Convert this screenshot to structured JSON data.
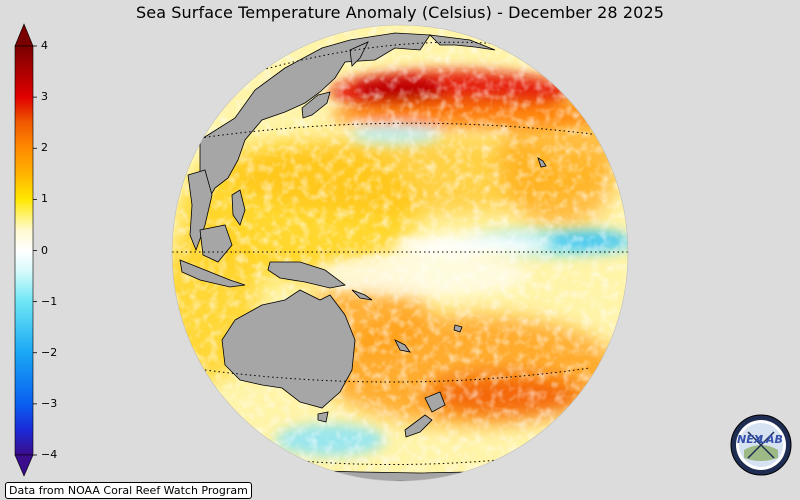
{
  "title": "Sea Surface Temperature Anomaly (Celsius) - December 28 2025",
  "source": "Data from NOAA Coral Reef Watch Program",
  "logo": {
    "name": "nexlab-logo",
    "text_left": "NEX",
    "text_right": "LAB"
  },
  "colorbar": {
    "min": -4,
    "max": 4,
    "ticks": [
      {
        "value": 4,
        "label": "4"
      },
      {
        "value": 3,
        "label": "3"
      },
      {
        "value": 2,
        "label": "2"
      },
      {
        "value": 1,
        "label": "1"
      },
      {
        "value": 0,
        "label": "0"
      },
      {
        "value": -1,
        "label": "−1"
      },
      {
        "value": -2,
        "label": "−2"
      },
      {
        "value": -3,
        "label": "−3"
      },
      {
        "value": -4,
        "label": "−4"
      }
    ],
    "stops": [
      {
        "value": -4,
        "color": "#3b0c8c"
      },
      {
        "value": -3.5,
        "color": "#1a2bd8"
      },
      {
        "value": -3,
        "color": "#0a5ff0"
      },
      {
        "value": -2,
        "color": "#1aa8f5"
      },
      {
        "value": -1,
        "color": "#6ee6f5"
      },
      {
        "value": -0.4,
        "color": "#d8fbfb"
      },
      {
        "value": 0,
        "color": "#ffffff"
      },
      {
        "value": 0.4,
        "color": "#fffad0"
      },
      {
        "value": 1,
        "color": "#ffe800"
      },
      {
        "value": 1.5,
        "color": "#ffb300"
      },
      {
        "value": 2,
        "color": "#ff8a00"
      },
      {
        "value": 2.5,
        "color": "#f05a00"
      },
      {
        "value": 3,
        "color": "#e00000"
      },
      {
        "value": 4,
        "color": "#7a0000"
      }
    ]
  },
  "map": {
    "projection": "orthographic",
    "center": "Pacific Ocean",
    "ocean_base": "#fff4a8",
    "land_color": "#a6a6a6",
    "background": "#dcdcdc",
    "regions": [
      {
        "name": "north-pacific-hot-band",
        "anomaly": 3.2
      },
      {
        "name": "equatorial-east-cold-tongue",
        "anomaly": -1.3
      },
      {
        "name": "south-pacific-warm",
        "anomaly": 2.4
      },
      {
        "name": "west-pacific-warm",
        "anomaly": 1.2
      },
      {
        "name": "southern-ocean-cool",
        "anomaly": -1.0
      }
    ]
  }
}
